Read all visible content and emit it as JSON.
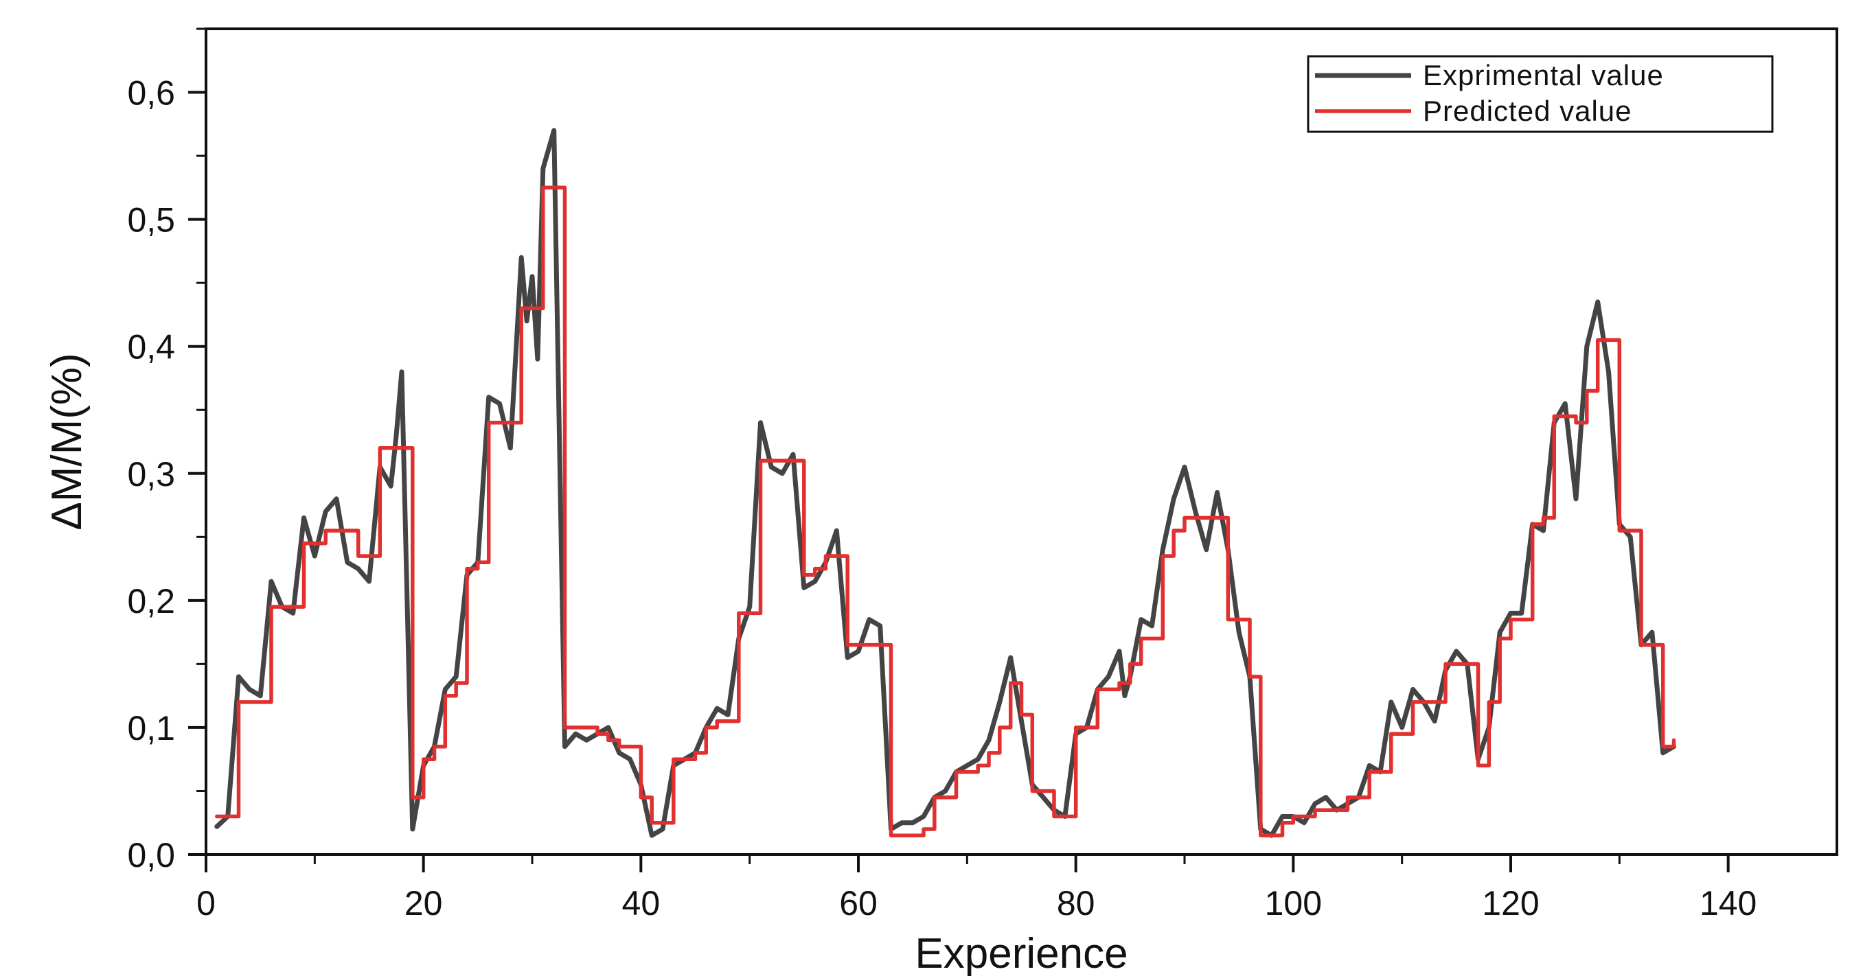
{
  "chart_data": {
    "type": "line",
    "title": "",
    "xlabel": "Experience",
    "ylabel": "ΔM/M(%)",
    "xlim": [
      0,
      150
    ],
    "ylim": [
      0,
      0.65
    ],
    "x_ticks": [
      0,
      20,
      40,
      60,
      80,
      100,
      120,
      140
    ],
    "x_tick_labels": [
      "0",
      "20",
      "40",
      "60",
      "80",
      "100",
      "120",
      "140"
    ],
    "y_ticks": [
      0,
      0.1,
      0.2,
      0.3,
      0.4,
      0.5,
      0.6
    ],
    "y_tick_labels": [
      "0,0",
      "0,1",
      "0,2",
      "0,3",
      "0,4",
      "0,5",
      "0,6"
    ],
    "grid": false,
    "legend_position": "top-right",
    "series": [
      {
        "name": "Exprimental value",
        "color": "#444444",
        "style": "line",
        "points": [
          [
            1,
            0.022
          ],
          [
            2,
            0.03
          ],
          [
            3,
            0.14
          ],
          [
            4,
            0.13
          ],
          [
            5,
            0.125
          ],
          [
            6,
            0.215
          ],
          [
            7,
            0.195
          ],
          [
            8,
            0.19
          ],
          [
            9,
            0.265
          ],
          [
            10,
            0.235
          ],
          [
            11,
            0.27
          ],
          [
            12,
            0.28
          ],
          [
            13,
            0.23
          ],
          [
            14,
            0.225
          ],
          [
            15,
            0.215
          ],
          [
            16,
            0.305
          ],
          [
            17,
            0.29
          ],
          [
            17.5,
            0.33
          ],
          [
            18,
            0.38
          ],
          [
            19,
            0.02
          ],
          [
            20,
            0.07
          ],
          [
            21,
            0.085
          ],
          [
            22,
            0.13
          ],
          [
            23,
            0.14
          ],
          [
            24,
            0.22
          ],
          [
            25,
            0.23
          ],
          [
            26,
            0.36
          ],
          [
            27,
            0.355
          ],
          [
            28,
            0.32
          ],
          [
            29,
            0.47
          ],
          [
            29.5,
            0.42
          ],
          [
            30,
            0.455
          ],
          [
            30.5,
            0.39
          ],
          [
            31,
            0.54
          ],
          [
            32,
            0.57
          ],
          [
            33,
            0.085
          ],
          [
            34,
            0.095
          ],
          [
            35,
            0.09
          ],
          [
            36,
            0.095
          ],
          [
            37,
            0.1
          ],
          [
            38,
            0.08
          ],
          [
            39,
            0.075
          ],
          [
            40,
            0.055
          ],
          [
            41,
            0.015
          ],
          [
            42,
            0.02
          ],
          [
            43,
            0.07
          ],
          [
            44,
            0.075
          ],
          [
            45,
            0.08
          ],
          [
            46,
            0.1
          ],
          [
            47,
            0.115
          ],
          [
            48,
            0.11
          ],
          [
            49,
            0.17
          ],
          [
            50,
            0.195
          ],
          [
            51,
            0.34
          ],
          [
            52,
            0.305
          ],
          [
            53,
            0.3
          ],
          [
            54,
            0.315
          ],
          [
            55,
            0.21
          ],
          [
            56,
            0.215
          ],
          [
            57,
            0.23
          ],
          [
            58,
            0.255
          ],
          [
            59,
            0.155
          ],
          [
            60,
            0.16
          ],
          [
            61,
            0.185
          ],
          [
            62,
            0.18
          ],
          [
            63,
            0.02
          ],
          [
            64,
            0.025
          ],
          [
            65,
            0.025
          ],
          [
            66,
            0.03
          ],
          [
            67,
            0.045
          ],
          [
            68,
            0.05
          ],
          [
            69,
            0.065
          ],
          [
            70,
            0.07
          ],
          [
            71,
            0.075
          ],
          [
            72,
            0.09
          ],
          [
            73,
            0.12
          ],
          [
            74,
            0.155
          ],
          [
            75,
            0.105
          ],
          [
            76,
            0.055
          ],
          [
            77,
            0.045
          ],
          [
            78,
            0.035
          ],
          [
            79,
            0.03
          ],
          [
            80,
            0.095
          ],
          [
            81,
            0.1
          ],
          [
            82,
            0.13
          ],
          [
            83,
            0.14
          ],
          [
            84,
            0.16
          ],
          [
            84.5,
            0.125
          ],
          [
            85,
            0.14
          ],
          [
            86,
            0.185
          ],
          [
            87,
            0.18
          ],
          [
            88,
            0.24
          ],
          [
            89,
            0.28
          ],
          [
            90,
            0.305
          ],
          [
            91,
            0.27
          ],
          [
            92,
            0.24
          ],
          [
            93,
            0.285
          ],
          [
            94,
            0.24
          ],
          [
            95,
            0.175
          ],
          [
            96,
            0.14
          ],
          [
            97,
            0.02
          ],
          [
            98,
            0.015
          ],
          [
            99,
            0.03
          ],
          [
            100,
            0.03
          ],
          [
            101,
            0.025
          ],
          [
            102,
            0.04
          ],
          [
            103,
            0.045
          ],
          [
            104,
            0.035
          ],
          [
            105,
            0.04
          ],
          [
            106,
            0.045
          ],
          [
            107,
            0.07
          ],
          [
            108,
            0.065
          ],
          [
            109,
            0.12
          ],
          [
            110,
            0.1
          ],
          [
            111,
            0.13
          ],
          [
            112,
            0.12
          ],
          [
            113,
            0.105
          ],
          [
            114,
            0.145
          ],
          [
            115,
            0.16
          ],
          [
            116,
            0.15
          ],
          [
            117,
            0.075
          ],
          [
            118,
            0.1
          ],
          [
            119,
            0.175
          ],
          [
            120,
            0.19
          ],
          [
            121,
            0.19
          ],
          [
            122,
            0.26
          ],
          [
            123,
            0.255
          ],
          [
            124,
            0.34
          ],
          [
            125,
            0.355
          ],
          [
            126,
            0.28
          ],
          [
            127,
            0.4
          ],
          [
            128,
            0.435
          ],
          [
            129,
            0.38
          ],
          [
            130,
            0.26
          ],
          [
            131,
            0.25
          ],
          [
            132,
            0.165
          ],
          [
            133,
            0.175
          ],
          [
            134,
            0.08
          ],
          [
            135,
            0.085
          ]
        ]
      },
      {
        "name": "Predicted value",
        "color": "#e03030",
        "style": "step",
        "points": [
          [
            1,
            0.03
          ],
          [
            2,
            0.03
          ],
          [
            3,
            0.12
          ],
          [
            4,
            0.12
          ],
          [
            5,
            0.12
          ],
          [
            6,
            0.195
          ],
          [
            7,
            0.195
          ],
          [
            8,
            0.195
          ],
          [
            9,
            0.245
          ],
          [
            10,
            0.245
          ],
          [
            11,
            0.255
          ],
          [
            12,
            0.255
          ],
          [
            13,
            0.255
          ],
          [
            14,
            0.235
          ],
          [
            15,
            0.235
          ],
          [
            16,
            0.32
          ],
          [
            17,
            0.32
          ],
          [
            18,
            0.32
          ],
          [
            19,
            0.045
          ],
          [
            20,
            0.075
          ],
          [
            21,
            0.085
          ],
          [
            22,
            0.125
          ],
          [
            23,
            0.135
          ],
          [
            24,
            0.225
          ],
          [
            25,
            0.23
          ],
          [
            26,
            0.34
          ],
          [
            27,
            0.34
          ],
          [
            28,
            0.34
          ],
          [
            29,
            0.43
          ],
          [
            30,
            0.43
          ],
          [
            31,
            0.525
          ],
          [
            32,
            0.525
          ],
          [
            33,
            0.1
          ],
          [
            34,
            0.1
          ],
          [
            35,
            0.1
          ],
          [
            36,
            0.095
          ],
          [
            37,
            0.09
          ],
          [
            38,
            0.085
          ],
          [
            39,
            0.085
          ],
          [
            40,
            0.045
          ],
          [
            41,
            0.025
          ],
          [
            42,
            0.025
          ],
          [
            43,
            0.075
          ],
          [
            44,
            0.075
          ],
          [
            45,
            0.08
          ],
          [
            46,
            0.1
          ],
          [
            47,
            0.105
          ],
          [
            48,
            0.105
          ],
          [
            49,
            0.19
          ],
          [
            50,
            0.19
          ],
          [
            51,
            0.31
          ],
          [
            52,
            0.31
          ],
          [
            53,
            0.31
          ],
          [
            54,
            0.31
          ],
          [
            55,
            0.22
          ],
          [
            56,
            0.225
          ],
          [
            57,
            0.235
          ],
          [
            58,
            0.235
          ],
          [
            59,
            0.165
          ],
          [
            60,
            0.165
          ],
          [
            61,
            0.165
          ],
          [
            62,
            0.165
          ],
          [
            63,
            0.015
          ],
          [
            64,
            0.015
          ],
          [
            65,
            0.015
          ],
          [
            66,
            0.02
          ],
          [
            67,
            0.045
          ],
          [
            68,
            0.045
          ],
          [
            69,
            0.065
          ],
          [
            70,
            0.065
          ],
          [
            71,
            0.07
          ],
          [
            72,
            0.08
          ],
          [
            73,
            0.1
          ],
          [
            74,
            0.135
          ],
          [
            75,
            0.11
          ],
          [
            76,
            0.05
          ],
          [
            77,
            0.05
          ],
          [
            78,
            0.03
          ],
          [
            79,
            0.03
          ],
          [
            80,
            0.1
          ],
          [
            81,
            0.1
          ],
          [
            82,
            0.13
          ],
          [
            83,
            0.13
          ],
          [
            84,
            0.135
          ],
          [
            85,
            0.15
          ],
          [
            86,
            0.17
          ],
          [
            87,
            0.17
          ],
          [
            88,
            0.235
          ],
          [
            89,
            0.255
          ],
          [
            90,
            0.265
          ],
          [
            91,
            0.265
          ],
          [
            92,
            0.265
          ],
          [
            93,
            0.265
          ],
          [
            94,
            0.185
          ],
          [
            95,
            0.185
          ],
          [
            96,
            0.14
          ],
          [
            97,
            0.015
          ],
          [
            98,
            0.015
          ],
          [
            99,
            0.025
          ],
          [
            100,
            0.03
          ],
          [
            101,
            0.03
          ],
          [
            102,
            0.035
          ],
          [
            103,
            0.035
          ],
          [
            104,
            0.035
          ],
          [
            105,
            0.045
          ],
          [
            106,
            0.045
          ],
          [
            107,
            0.065
          ],
          [
            108,
            0.065
          ],
          [
            109,
            0.095
          ],
          [
            110,
            0.095
          ],
          [
            111,
            0.12
          ],
          [
            112,
            0.12
          ],
          [
            113,
            0.12
          ],
          [
            114,
            0.15
          ],
          [
            115,
            0.15
          ],
          [
            116,
            0.15
          ],
          [
            117,
            0.07
          ],
          [
            118,
            0.12
          ],
          [
            119,
            0.17
          ],
          [
            120,
            0.185
          ],
          [
            121,
            0.185
          ],
          [
            122,
            0.26
          ],
          [
            123,
            0.265
          ],
          [
            124,
            0.345
          ],
          [
            125,
            0.345
          ],
          [
            126,
            0.34
          ],
          [
            127,
            0.365
          ],
          [
            128,
            0.405
          ],
          [
            129,
            0.405
          ],
          [
            130,
            0.255
          ],
          [
            131,
            0.255
          ],
          [
            132,
            0.165
          ],
          [
            133,
            0.165
          ],
          [
            134,
            0.085
          ],
          [
            135,
            0.09
          ]
        ]
      }
    ]
  }
}
